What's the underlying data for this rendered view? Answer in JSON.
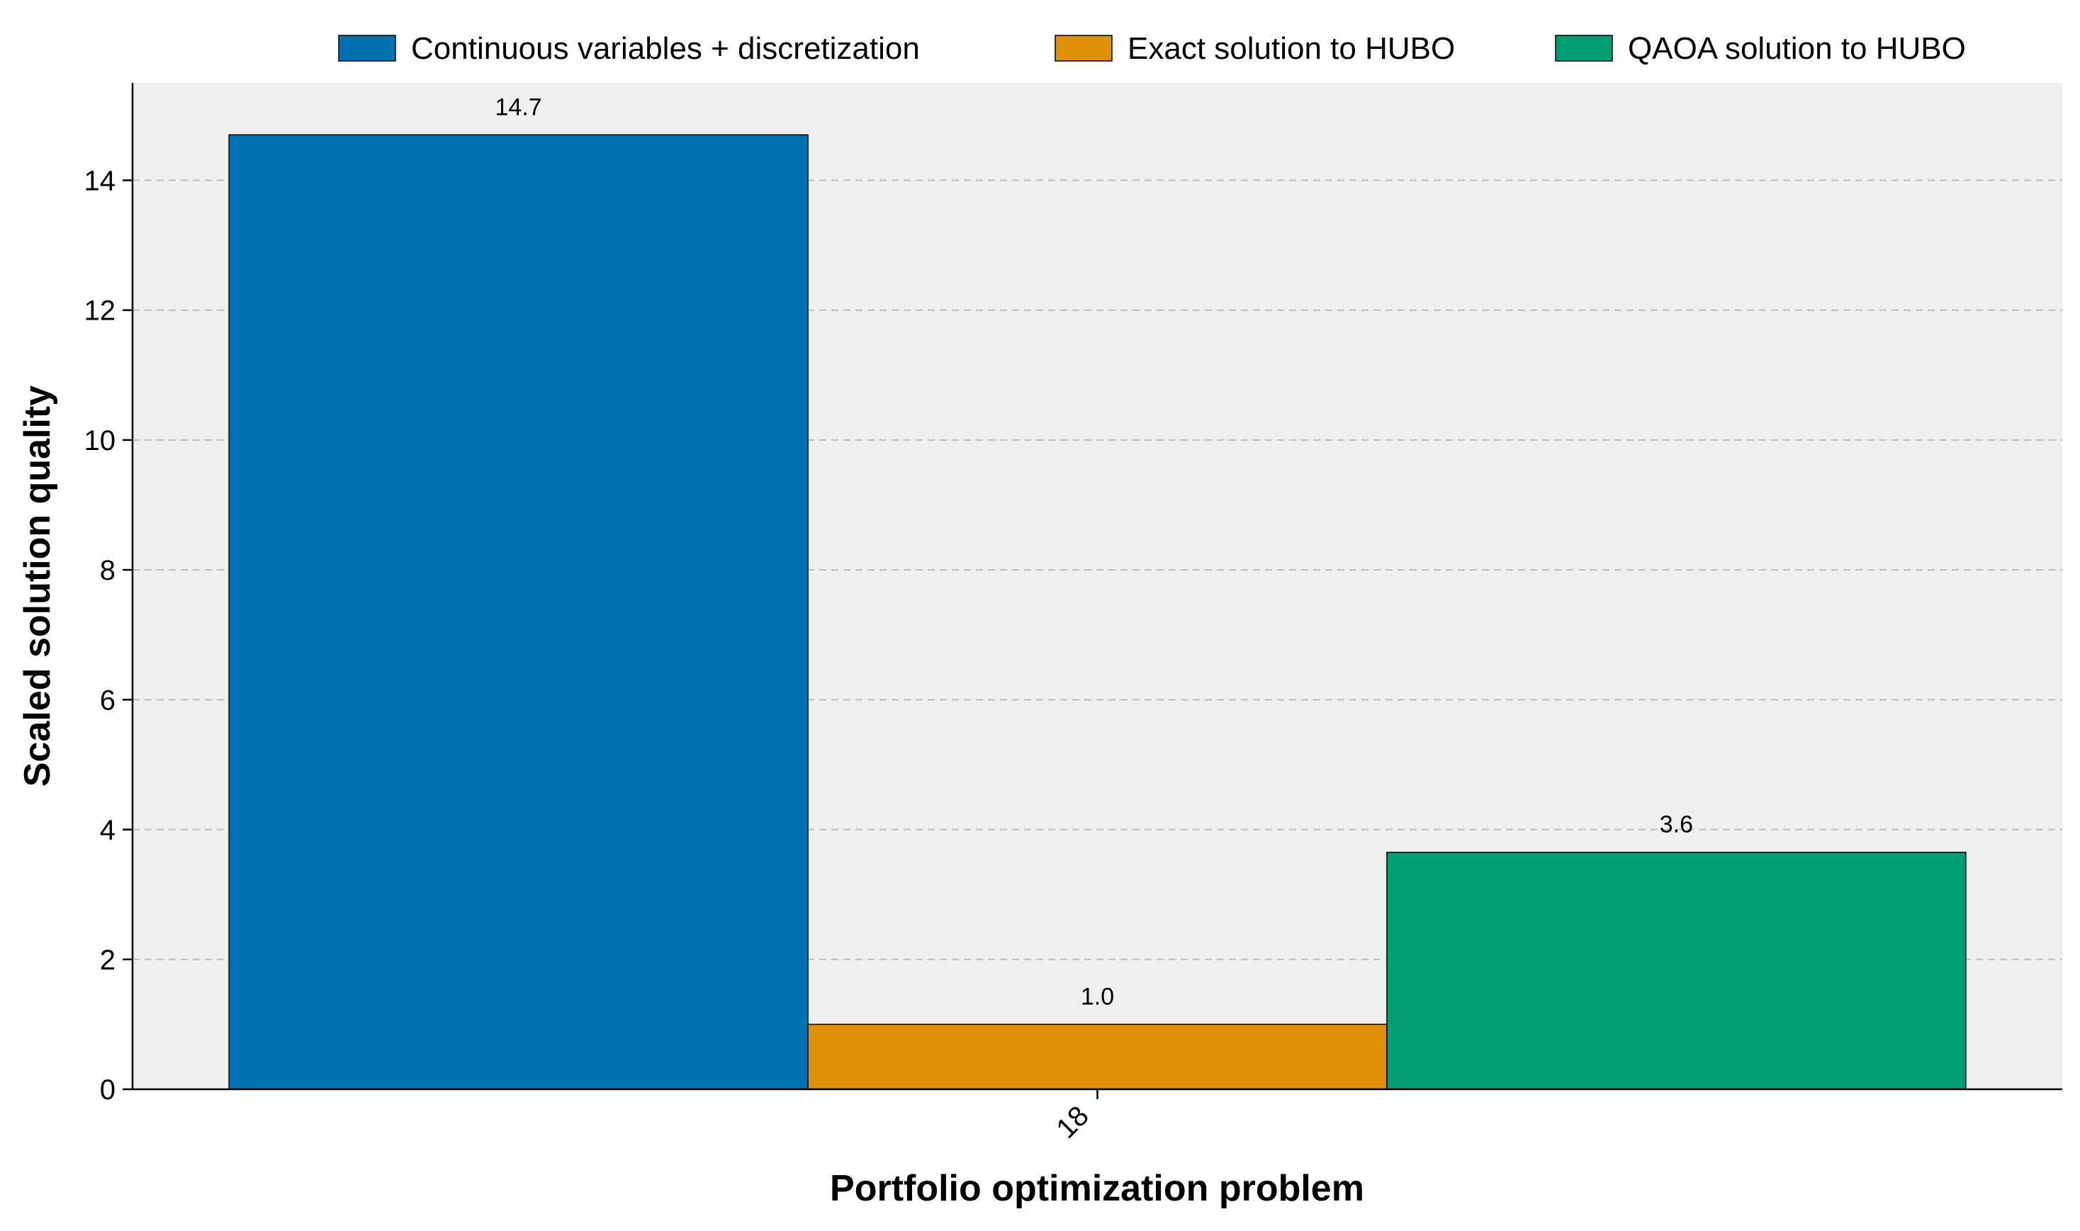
{
  "chart_data": {
    "type": "bar",
    "title": "",
    "xlabel": "Portfolio optimization problem",
    "ylabel": "Scaled solution quality",
    "categories": [
      "18"
    ],
    "ylim": [
      0,
      15.5
    ],
    "yticks": [
      "0",
      "2",
      "4",
      "6",
      "8",
      "10",
      "12",
      "14"
    ],
    "grid": "y-dashed",
    "legend_position": "top",
    "series": [
      {
        "name": "Continuous variables + discretization",
        "values": [
          14.7
        ],
        "data_labels": [
          "14.7"
        ],
        "color": "#0072b2"
      },
      {
        "name": "Exact solution to HUBO",
        "values": [
          1.0
        ],
        "data_labels": [
          "1.0"
        ],
        "color": "#de8f05"
      },
      {
        "name": "QAOA solution to HUBO",
        "values": [
          3.65
        ],
        "data_labels": [
          "3.6"
        ],
        "color": "#029e73"
      }
    ],
    "plot_background": "#efefef"
  }
}
